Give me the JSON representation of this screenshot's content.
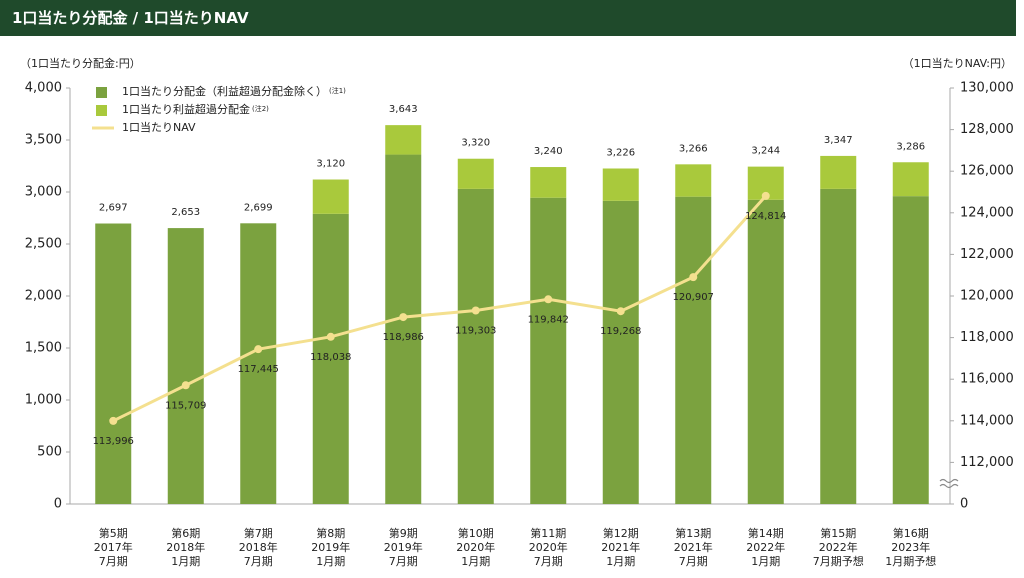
{
  "header": {
    "title": "1口当たり分配金 / 1口当たりNAV"
  },
  "chart_data": {
    "type": "bar_line",
    "ylabel": "（1口当たり分配金:円）",
    "y2label": "（1口当たりNAV:円）",
    "categories": [
      [
        "第5期",
        "2017年",
        "7月期"
      ],
      [
        "第6期",
        "2018年",
        "1月期"
      ],
      [
        "第7期",
        "2018年",
        "7月期"
      ],
      [
        "第8期",
        "2019年",
        "1月期"
      ],
      [
        "第9期",
        "2019年",
        "7月期"
      ],
      [
        "第10期",
        "2020年",
        "1月期"
      ],
      [
        "第11期",
        "2020年",
        "7月期"
      ],
      [
        "第12期",
        "2021年",
        "1月期"
      ],
      [
        "第13期",
        "2021年",
        "7月期"
      ],
      [
        "第14期",
        "2022年",
        "1月期"
      ],
      [
        "第15期",
        "2022年",
        "7月期予想"
      ],
      [
        "第16期",
        "2023年",
        "1月期予想"
      ]
    ],
    "series": [
      {
        "name": "1口当たり分配金（利益超過分配金除く）",
        "note": "(注1)",
        "color": "#7ba23f",
        "values": [
          2697,
          2653,
          2699,
          2790,
          3360,
          3030,
          2945,
          2915,
          2955,
          2925,
          3030,
          2960
        ]
      },
      {
        "name": "1口当たり利益超過分配金",
        "note": "(注2)",
        "color": "#a9c93c",
        "values": [
          0,
          0,
          0,
          330,
          283,
          290,
          295,
          311,
          311,
          319,
          317,
          326
        ]
      },
      {
        "name": "1口当たりNAV",
        "color": "#f4e08f",
        "axis": "y2",
        "values": [
          113996,
          115709,
          117445,
          118038,
          118986,
          119303,
          119842,
          119268,
          120907,
          124814,
          null,
          null
        ],
        "value_labels": [
          "113,996",
          "115,709",
          "117,445",
          "118,038",
          "118,986",
          "119,303",
          "119,842",
          "119,268",
          "120,907",
          "124,814",
          null,
          null
        ]
      }
    ],
    "totals": [
      2697,
      2653,
      2699,
      3120,
      3643,
      3320,
      3240,
      3226,
      3266,
      3244,
      3347,
      3286
    ],
    "total_labels": [
      "2,697",
      "2,653",
      "2,699",
      "3,120",
      "3,643",
      "3,320",
      "3,240",
      "3,226",
      "3,266",
      "3,244",
      "3,347",
      "3,286"
    ],
    "ylim": [
      0,
      4000
    ],
    "yticks": [
      0,
      500,
      {
        "value": 1000,
        "label": "1,000"
      },
      {
        "value": 1500,
        "label": "1,500"
      },
      {
        "value": 2000,
        "label": "2,000"
      },
      {
        "value": 2500,
        "label": "2,500"
      },
      {
        "value": 3000,
        "label": "3,000"
      },
      {
        "value": 3500,
        "label": "3,500"
      },
      {
        "value": 4000,
        "label": "4,000"
      }
    ],
    "y2lim": [
      110000,
      130000
    ],
    "y2_break": true,
    "y2ticks": [
      0,
      {
        "value": 112000,
        "label": "112,000"
      },
      {
        "value": 114000,
        "label": "114,000"
      },
      {
        "value": 116000,
        "label": "116,000"
      },
      {
        "value": 118000,
        "label": "118,000"
      },
      {
        "value": 120000,
        "label": "120,000"
      },
      {
        "value": 122000,
        "label": "122,000"
      },
      {
        "value": 124000,
        "label": "124,000"
      },
      {
        "value": 126000,
        "label": "126,000"
      },
      {
        "value": 128000,
        "label": "128,000"
      },
      {
        "value": 130000,
        "label": "130,000"
      }
    ],
    "legend": "top-left"
  }
}
